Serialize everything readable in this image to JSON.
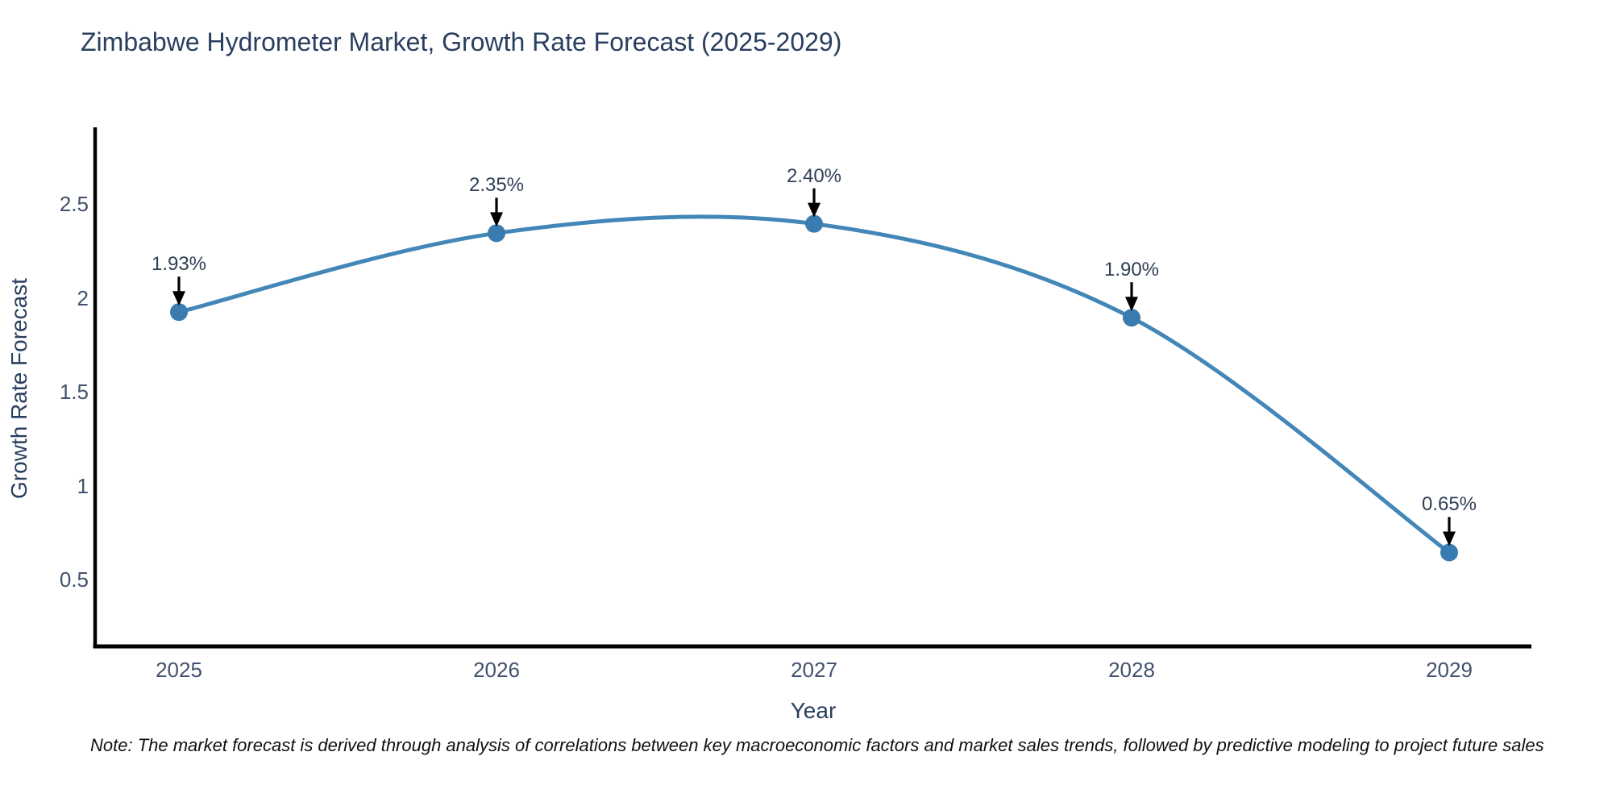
{
  "chart_data": {
    "type": "line",
    "line_shape": "spline",
    "title": "Zimbabwe Hydrometer Market, Growth Rate Forecast (2025-2029)",
    "xlabel": "Year",
    "ylabel": "Growth Rate Forecast",
    "categories": [
      "2025",
      "2026",
      "2027",
      "2028",
      "2029"
    ],
    "series": [
      {
        "name": "Growth Rate Forecast",
        "values": [
          1.93,
          2.35,
          2.4,
          1.9,
          0.65
        ]
      }
    ],
    "annotations": [
      "1.93%",
      "2.35%",
      "2.40%",
      "1.90%",
      "0.65%"
    ],
    "yticks": [
      0.5,
      1,
      1.5,
      2,
      2.5
    ],
    "ytick_labels": [
      "0.5",
      "1",
      "1.5",
      "2",
      "2.5"
    ],
    "ylim": [
      0.15,
      2.905
    ],
    "grid": false,
    "legend": "none",
    "colors": {
      "line": "#4287b8",
      "marker": "#3a7cb0",
      "axis": "#000000",
      "arrow": "#000000",
      "title_text": "#2a3f5f",
      "tick_text": "#42516d",
      "annotation_text": "#2f3f57"
    }
  },
  "note": "Note: The market forecast is derived through analysis of correlations between key macroeconomic factors and market sales trends, followed by predictive modeling to project future sales"
}
